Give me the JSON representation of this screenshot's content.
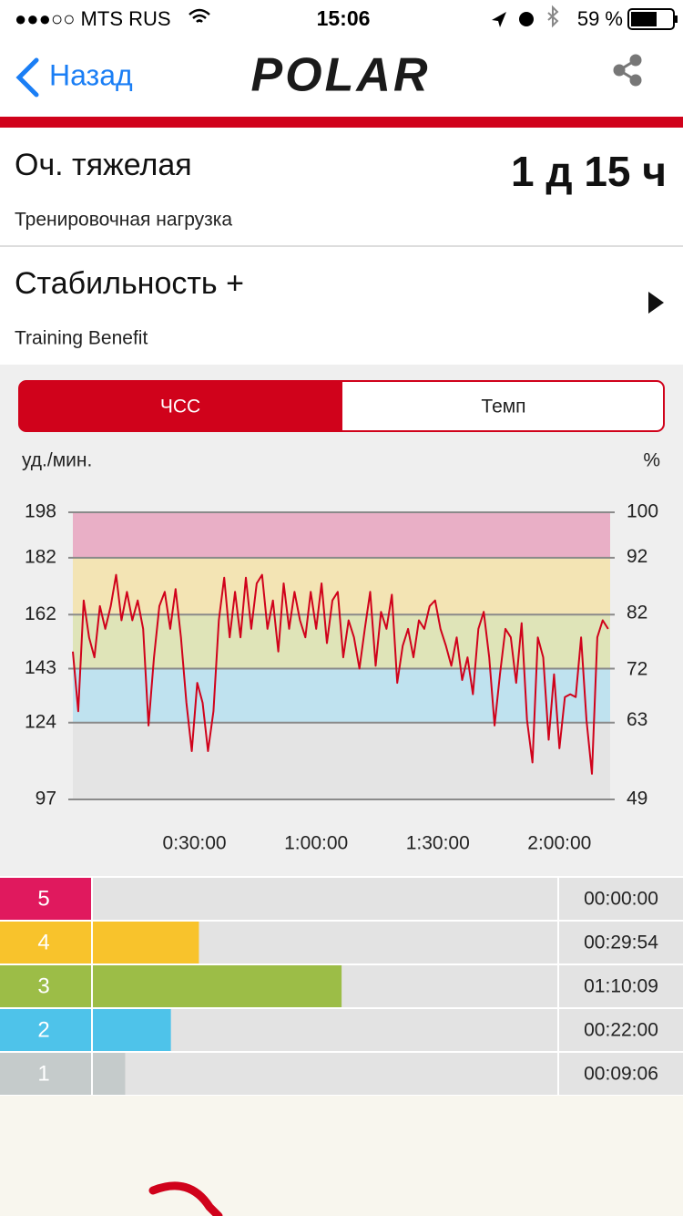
{
  "status_bar": {
    "carrier": "●●●○○ MTS RUS",
    "time": "15:06",
    "battery": "59 %"
  },
  "nav": {
    "back": "Назад",
    "logo": "POLAR"
  },
  "load": {
    "title": "Оч. тяжелая",
    "subtitle": "Тренировочная нагрузка",
    "value": "1 д 15 ч"
  },
  "benefit": {
    "title": "Стабильность +",
    "subtitle": "Training Benefit"
  },
  "tabs": [
    "ЧСС",
    "Темп"
  ],
  "chart_data": [
    {
      "type": "line",
      "color": "#d0021b",
      "y_label": "уд./мин.",
      "y2_label": "%",
      "ylim": [
        97,
        198
      ],
      "yticks": [
        97,
        124,
        143,
        162,
        182,
        198
      ],
      "y2lim": [
        49,
        100
      ],
      "y2ticks": [
        49,
        63,
        72,
        82,
        92,
        100
      ],
      "xlim": [
        0,
        7950
      ],
      "xticks": [
        {
          "value": 1800,
          "label": "0:30:00"
        },
        {
          "value": 3600,
          "label": "1:00:00"
        },
        {
          "value": 5400,
          "label": "1:30:00"
        },
        {
          "value": 7200,
          "label": "2:00:00"
        }
      ],
      "grid": true,
      "zones": [
        {
          "from": 97,
          "to": 124,
          "color": "#e4e4e4"
        },
        {
          "from": 124,
          "to": 143,
          "color": "#bfe2ef"
        },
        {
          "from": 143,
          "to": 162,
          "color": "#dfe4b8"
        },
        {
          "from": 162,
          "to": 182,
          "color": "#f3e4b4"
        },
        {
          "from": 182,
          "to": 198,
          "color": "#e9afc6"
        }
      ],
      "x": [
        0,
        80,
        160,
        240,
        320,
        400,
        480,
        560,
        640,
        720,
        800,
        880,
        960,
        1040,
        1120,
        1200,
        1280,
        1360,
        1440,
        1520,
        1600,
        1680,
        1760,
        1840,
        1920,
        2000,
        2080,
        2160,
        2240,
        2320,
        2400,
        2480,
        2560,
        2640,
        2720,
        2800,
        2880,
        2960,
        3040,
        3120,
        3200,
        3280,
        3360,
        3440,
        3520,
        3600,
        3680,
        3760,
        3840,
        3920,
        4000,
        4080,
        4160,
        4240,
        4320,
        4400,
        4480,
        4560,
        4640,
        4720,
        4800,
        4880,
        4960,
        5040,
        5120,
        5200,
        5280,
        5360,
        5440,
        5520,
        5600,
        5680,
        5760,
        5840,
        5920,
        6000,
        6080,
        6160,
        6240,
        6320,
        6400,
        6480,
        6560,
        6640,
        6720,
        6800,
        6880,
        6960,
        7040,
        7120,
        7200,
        7280,
        7360,
        7440,
        7520,
        7600,
        7680,
        7760,
        7840,
        7920
      ],
      "values": [
        149,
        128,
        167,
        154,
        147,
        165,
        157,
        165,
        176,
        160,
        170,
        160,
        167,
        157,
        123,
        147,
        165,
        170,
        157,
        171,
        154,
        131,
        114,
        138,
        131,
        114,
        128,
        160,
        175,
        154,
        170,
        154,
        175,
        157,
        173,
        176,
        157,
        167,
        149,
        173,
        157,
        170,
        160,
        154,
        170,
        157,
        173,
        152,
        167,
        170,
        147,
        160,
        154,
        143,
        157,
        170,
        144,
        163,
        157,
        169,
        138,
        151,
        157,
        147,
        160,
        157,
        165,
        167,
        157,
        151,
        144,
        154,
        139,
        147,
        134,
        157,
        163,
        147,
        123,
        141,
        157,
        154,
        138,
        159,
        125,
        110,
        154,
        147,
        118,
        141,
        115,
        133,
        134,
        133,
        154,
        125,
        106,
        154,
        160,
        157
      ]
    },
    {
      "type": "bar",
      "orientation": "horizontal",
      "categories": [
        "5",
        "4",
        "3",
        "2",
        "1"
      ],
      "values": [
        0,
        1794,
        4209,
        1320,
        546
      ],
      "value_labels": [
        "00:00:00",
        "00:29:54",
        "01:10:09",
        "00:22:00",
        "00:09:06"
      ],
      "colors": [
        "#e0195e",
        "#f8c32c",
        "#9cbd47",
        "#4ec3ea",
        "#c5cbcb"
      ],
      "xlim": [
        0,
        7860
      ]
    }
  ]
}
